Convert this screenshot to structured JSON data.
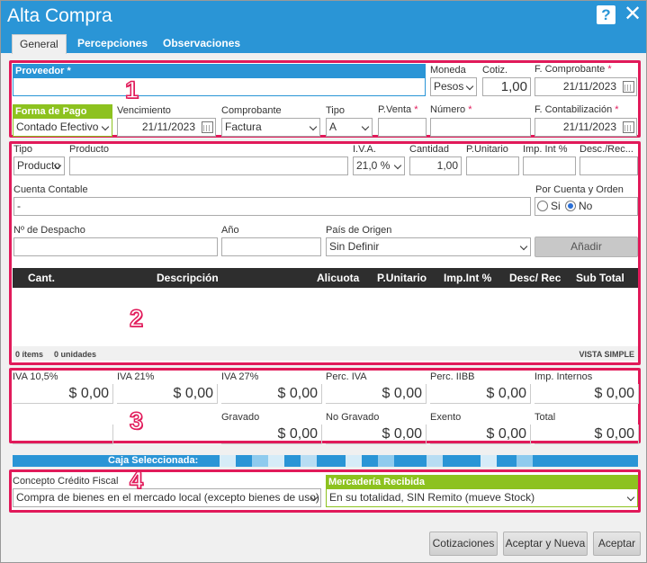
{
  "window": {
    "title": "Alta Compra",
    "help_label": "?",
    "close_label": "✕"
  },
  "tabs": [
    {
      "label": "General"
    },
    {
      "label": "Percepciones"
    },
    {
      "label": "Observaciones"
    }
  ],
  "header": {
    "proveedor_label": "Proveedor",
    "required_mark": "*",
    "proveedor_value": "",
    "moneda_label": "Moneda",
    "moneda_value": "Pesos",
    "cotiz_label": "Cotiz.",
    "cotiz_value": "1,00",
    "fecha_comprobante_label": "F. Comprobante",
    "fecha_comprobante_value": "21/11/2023",
    "forma_pago_label": "Forma de Pago",
    "forma_pago_value": "Contado Efectivo",
    "vencimiento_label": "Vencimiento",
    "vencimiento_value": "21/11/2023",
    "comprobante_label": "Comprobante",
    "comprobante_value": "Factura",
    "tipo_label": "Tipo",
    "tipo_value": "A",
    "pventa_label": "P.Venta",
    "pventa_value": "",
    "numero_label": "Número",
    "numero_value": "",
    "fecha_contab_label": "F. Contabilización",
    "fecha_contab_value": "21/11/2023"
  },
  "item": {
    "tipo_label": "Tipo",
    "tipo_value": "Producto",
    "producto_label": "Producto",
    "producto_value": "",
    "iva_label": "I.V.A.",
    "iva_value": "21,0 %",
    "cantidad_label": "Cantidad",
    "cantidad_value": "1,00",
    "punitario_label": "P.Unitario",
    "impint_label": "Imp. Int %",
    "desc_label": "Desc./Rec...",
    "cuenta_label": "Cuenta Contable",
    "cuenta_value": "-",
    "por_cuenta_label": "Por Cuenta y Orden",
    "si_label": "Si",
    "no_label": "No",
    "despacho_label": "Nº de Despacho",
    "anio_label": "Año",
    "pais_label": "País de Origen",
    "pais_value": "Sin Definir",
    "anadir_label": "Añadir"
  },
  "grid": {
    "columns": [
      "Cant.",
      "Descripción",
      "Alicuota",
      "P.Unitario",
      "Imp.Int %",
      "Desc/ Rec",
      "Sub Total"
    ],
    "footer_items": "0 ítems",
    "footer_units": "0 unidades",
    "footer_view": "VISTA SIMPLE"
  },
  "totals": [
    {
      "label": "IVA 10,5%",
      "value": "$ 0,00"
    },
    {
      "label": "IVA 21%",
      "value": "$ 0,00"
    },
    {
      "label": "IVA 27%",
      "value": "$ 0,00"
    },
    {
      "label": "Perc. IVA",
      "value": "$ 0,00"
    },
    {
      "label": "Perc. IIBB",
      "value": "$ 0,00"
    },
    {
      "label": "Imp. Internos",
      "value": "$ 0,00"
    },
    {
      "label": "Gravado",
      "value": "$ 0,00"
    },
    {
      "label": "No Gravado",
      "value": "$ 0,00"
    },
    {
      "label": "Exento",
      "value": "$ 0,00"
    },
    {
      "label": "Total",
      "value": "$ 0,00"
    }
  ],
  "caja": {
    "label": "Caja Seleccionada:"
  },
  "bottom": {
    "concepto_label": "Concepto Crédito Fiscal",
    "concepto_value": "Compra de bienes en el mercado local (excepto bienes de uso)",
    "mercaderia_label": "Mercadería Recibida",
    "mercaderia_value": "En su totalidad, SIN Remito (mueve Stock)"
  },
  "annotations": [
    "1",
    "2",
    "3",
    "4"
  ],
  "buttons": {
    "cotizaciones": "Cotizaciones",
    "aceptar_nueva": "Aceptar y Nueva",
    "aceptar": "Aceptar"
  },
  "colors": {
    "header_blue": "#2a95d6",
    "highlight_pink": "#e11a5a",
    "green": "#8dc21f"
  }
}
